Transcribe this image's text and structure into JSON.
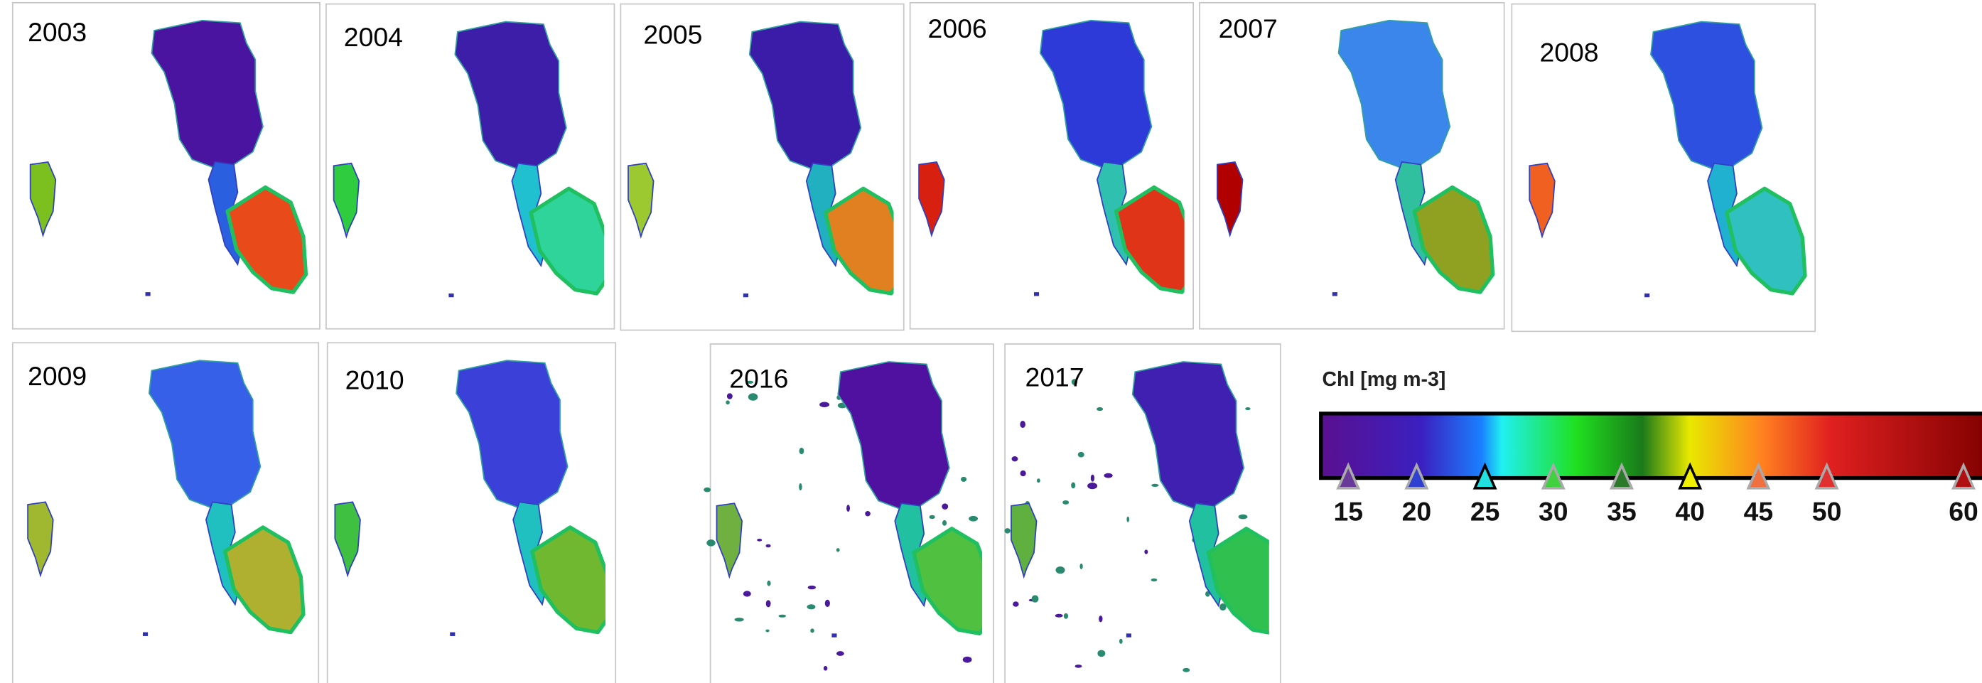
{
  "panels": [
    {
      "year": "2003"
    },
    {
      "year": "2004"
    },
    {
      "year": "2005"
    },
    {
      "year": "2006"
    },
    {
      "year": "2007"
    },
    {
      "year": "2008"
    },
    {
      "year": "2009"
    },
    {
      "year": "2010"
    },
    {
      "year": "2016"
    },
    {
      "year": "2017"
    }
  ],
  "colorbar": {
    "title": "Chl [mg m-3]",
    "lim": [
      13,
      62
    ],
    "ticks": [
      15,
      20,
      25,
      30,
      35,
      40,
      45,
      50,
      60
    ],
    "tick_colors": [
      "#6a3a9a",
      "#3040d0",
      "#20e0e0",
      "#40d040",
      "#2a7a2a",
      "#f0f000",
      "#f07040",
      "#e03030",
      "#b01010"
    ],
    "tick_edge_colors": [
      "#aaaaaa",
      "#aaaaaa",
      "#000000",
      "#aaaaaa",
      "#aaaaaa",
      "#000000",
      "#aaaaaa",
      "#aaaaaa",
      "#aaaaaa"
    ]
  }
}
